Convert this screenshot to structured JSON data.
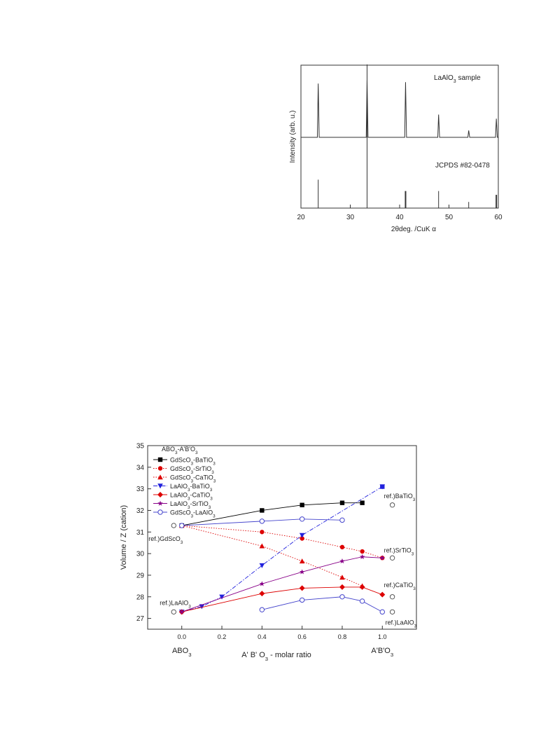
{
  "chart_data": [
    {
      "type": "line",
      "xlabel": "2θdeg.  /CuK α",
      "ylabel": "Intensity (arb. u.)",
      "xlim": [
        20,
        60
      ],
      "xticks": [
        20,
        30,
        40,
        50,
        60
      ],
      "annotations": [
        "LaAlO3 sample",
        "JCPDS #82-0478"
      ],
      "series": [
        {
          "name": "LaAlO3 sample",
          "peaks": [
            {
              "x": 23.5,
              "y": 0.78
            },
            {
              "x": 33.4,
              "y": 0.83
            },
            {
              "x": 41.2,
              "y": 0.8
            },
            {
              "x": 47.9,
              "y": 0.33
            },
            {
              "x": 54.0,
              "y": 0.1
            },
            {
              "x": 59.6,
              "y": 0.27
            }
          ]
        },
        {
          "name": "JCPDS #82-0478",
          "peaks": [
            {
              "x": 23.5,
              "y": 0.6
            },
            {
              "x": 33.4,
              "y": 1.0
            },
            {
              "x": 41.2,
              "y": 0.36
            },
            {
              "x": 47.9,
              "y": 0.36
            },
            {
              "x": 54.0,
              "y": 0.13
            },
            {
              "x": 59.6,
              "y": 0.28
            }
          ]
        }
      ]
    },
    {
      "type": "line",
      "ylabel": "Volume / Z (cation)",
      "xlabel": "A' B' O3  - molar ratio",
      "xlim": [
        -0.17,
        1.17
      ],
      "ylim": [
        26.5,
        35
      ],
      "xticks": [
        0.0,
        0.2,
        0.4,
        0.6,
        0.8,
        1.0
      ],
      "yticks": [
        27,
        28,
        29,
        30,
        31,
        32,
        33,
        34,
        35
      ],
      "x_end_labels": [
        "ABO3",
        "A'B'O3"
      ],
      "legend_title": "ABO3-A'B'O3",
      "legend_position": "top-left",
      "series": [
        {
          "name": "GdScO3-BaTiO3",
          "color": "#000000",
          "marker": "square",
          "line": "solid",
          "x": [
            0.0,
            0.4,
            0.6,
            0.8,
            0.9
          ],
          "y": [
            31.3,
            32.0,
            32.25,
            32.35,
            32.35
          ]
        },
        {
          "name": "GdScO3-SrTiO3",
          "color": "#dd0000",
          "marker": "circle",
          "line": "dotted",
          "x": [
            0.0,
            0.4,
            0.6,
            0.8,
            0.9,
            1.0
          ],
          "y": [
            31.3,
            31.0,
            30.7,
            30.3,
            30.1,
            29.8
          ]
        },
        {
          "name": "GdScO3-CaTiO3",
          "color": "#dd0000",
          "marker": "triangle",
          "line": "dotted",
          "x": [
            0.0,
            0.4,
            0.6,
            0.8,
            0.9
          ],
          "y": [
            31.3,
            30.35,
            29.65,
            28.9,
            28.5
          ]
        },
        {
          "name": "LaAlO3-BaTiO3",
          "color": "#2222dd",
          "marker": "triangle-down",
          "line": "dashdot",
          "x": [
            0.0,
            0.1,
            0.2,
            0.4,
            0.6,
            1.0
          ],
          "y": [
            27.3,
            27.55,
            28.0,
            29.45,
            30.85,
            33.1
          ]
        },
        {
          "name": "LaAlO3-CaTiO3",
          "color": "#dd0000",
          "marker": "diamond",
          "line": "solid",
          "x": [
            0.0,
            0.4,
            0.6,
            0.8,
            0.9,
            1.0
          ],
          "y": [
            27.3,
            28.15,
            28.4,
            28.45,
            28.45,
            28.1
          ]
        },
        {
          "name": "LaAlO3-SrTiO3",
          "color": "#880088",
          "marker": "star",
          "line": "solid",
          "x": [
            0.0,
            0.4,
            0.6,
            0.8,
            0.9,
            1.0
          ],
          "y": [
            27.3,
            28.6,
            29.15,
            29.65,
            29.85,
            29.8
          ]
        },
        {
          "name": "GdScO3-LaAlO3",
          "color": "#4444cc",
          "marker": "open-circle",
          "line": "solid",
          "x": [
            0.0,
            0.4,
            0.6,
            0.8
          ],
          "y": [
            31.3,
            31.5,
            31.6,
            31.55
          ]
        },
        {
          "name": "GdScO3-LaAlO3",
          "color": "#4444cc",
          "marker": "open-circle",
          "line": "solid",
          "x": [
            0.4,
            0.6,
            0.8,
            0.9,
            1.0
          ],
          "y": [
            27.4,
            27.85,
            28.0,
            27.8,
            27.3
          ]
        },
        {
          "name": "GdScO3-BaTiO3",
          "color": "#2222dd",
          "marker": "square",
          "line": "none",
          "x": [
            1.0
          ],
          "y": [
            33.1
          ]
        }
      ],
      "reference_points": [
        {
          "label": "ref.)GdScO3",
          "x": -0.04,
          "y": 31.3
        },
        {
          "label": "ref.)LaAlO3",
          "x": -0.04,
          "y": 27.3
        },
        {
          "label": "ref.)BaTiO3",
          "x": 1.05,
          "y": 32.25
        },
        {
          "label": "ref.)SrTiO3",
          "x": 1.05,
          "y": 29.8
        },
        {
          "label": "ref.)CaTiO3",
          "x": 1.05,
          "y": 28.0
        },
        {
          "label": "ref.)LaAlO3",
          "x": 1.05,
          "y": 27.3
        }
      ]
    }
  ]
}
